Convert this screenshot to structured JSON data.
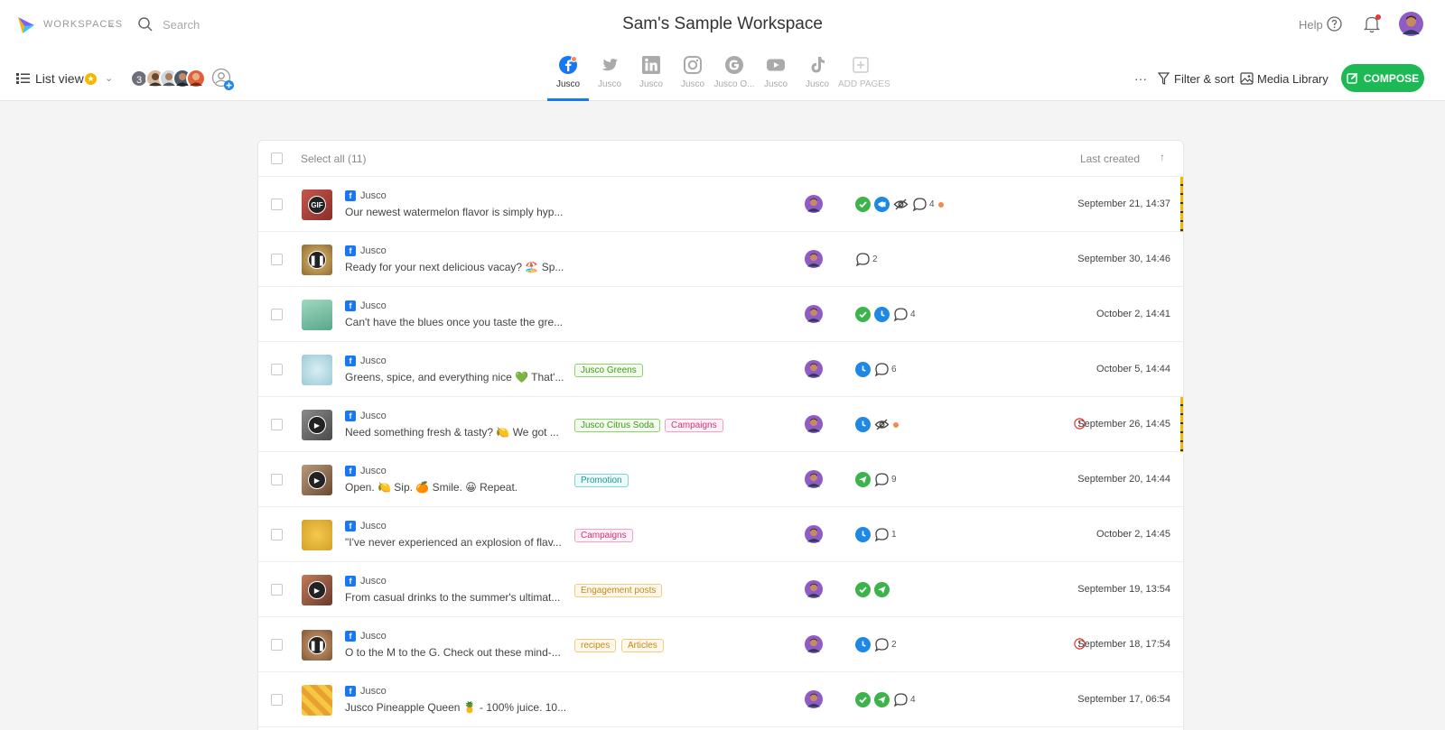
{
  "header": {
    "workspaces_label": "WORKSPACES",
    "search_placeholder": "Search",
    "workspace_title": "Sam's Sample Workspace",
    "help_label": "Help"
  },
  "toolbar": {
    "view_label": "List view",
    "member_count": "3",
    "filter_label": "Filter & sort",
    "media_label": "Media Library",
    "compose_label": "COMPOSE",
    "more_label": "···"
  },
  "tabs": [
    {
      "label": "Jusco",
      "network": "facebook",
      "active": true
    },
    {
      "label": "Jusco",
      "network": "twitter"
    },
    {
      "label": "Jusco",
      "network": "linkedin"
    },
    {
      "label": "Jusco",
      "network": "instagram"
    },
    {
      "label": "Jusco O...",
      "network": "google"
    },
    {
      "label": "Jusco",
      "network": "youtube"
    },
    {
      "label": "Jusco",
      "network": "tiktok"
    },
    {
      "label": "ADD PAGES",
      "network": "add"
    }
  ],
  "list": {
    "select_all_label": "Select all (11)",
    "sort_label": "Last created",
    "sort_arrow": "↑",
    "rows": [
      {
        "page": "Jusco",
        "text": "Our newest watermelon flavor is simply hyp...",
        "tags": [],
        "comments": "4",
        "date": "September 21, 14:37"
      },
      {
        "page": "Jusco",
        "text": "Ready for your next delicious vacay? 🏖️ Sp...",
        "tags": [],
        "comments": "2",
        "date": "September 30, 14:46"
      },
      {
        "page": "Jusco",
        "text": "Can't have the blues once you taste the gre...",
        "tags": [],
        "comments": "4",
        "date": "October 2, 14:41"
      },
      {
        "page": "Jusco",
        "text": "Greens, spice, and everything nice 💚 That'...",
        "tags": [
          "Jusco Greens"
        ],
        "comments": "6",
        "date": "October 5, 14:44"
      },
      {
        "page": "Jusco",
        "text": "Need something fresh & tasty? 🍋 We got ...",
        "tags": [
          "Jusco Citrus Soda",
          "Campaigns"
        ],
        "comments": "",
        "date": "September 26, 14:45"
      },
      {
        "page": "Jusco",
        "text": "Open. 🍋 Sip. 🍊 Smile. 😀 Repeat.",
        "tags": [
          "Promotion"
        ],
        "comments": "9",
        "date": "September 20, 14:44"
      },
      {
        "page": "Jusco",
        "text": "\"I've never experienced an explosion of flav...",
        "tags": [
          "Campaigns"
        ],
        "comments": "1",
        "date": "October 2, 14:45"
      },
      {
        "page": "Jusco",
        "text": "From casual drinks to the summer's ultimat...",
        "tags": [
          "Engagement posts"
        ],
        "comments": "",
        "date": "September 19, 13:54"
      },
      {
        "page": "Jusco",
        "text": "O to the M to the G. Check out these mind-...",
        "tags": [
          "recipes",
          "Articles"
        ],
        "comments": "2",
        "date": "September 18, 17:54"
      },
      {
        "page": "Jusco",
        "text": "Jusco Pineapple Queen 🍍 - 100% juice. 10...",
        "tags": [],
        "comments": "4",
        "date": "September 17, 06:54"
      }
    ]
  },
  "icons": {
    "facebook_badge": "f",
    "gif_overlay": "GIF"
  },
  "colors": {
    "accent": "#1877f2",
    "compose": "#1db954",
    "approved": "#3cb44b",
    "scheduled": "#1e88e5",
    "alert": "#e53935"
  }
}
